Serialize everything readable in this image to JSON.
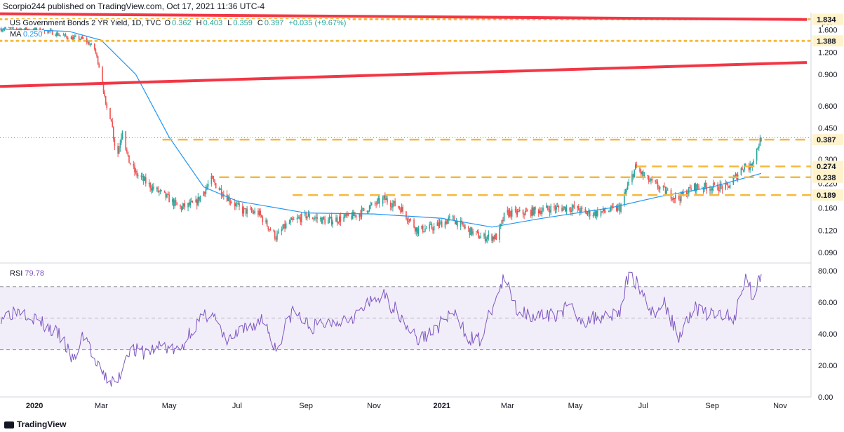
{
  "header": {
    "text": "Scorpio244 published on TradingView.com, Oct 17, 2021 11:36 UTC-4"
  },
  "legend": {
    "symbol": "US Government Bonds 2 YR Yield, 1D, TVC",
    "o_label": "O",
    "o": "0.362",
    "h_label": "H",
    "h": "0.403",
    "l_label": "L",
    "l": "0.359",
    "c_label": "C",
    "c": "0.397",
    "change": "+0.035 (+9.67%)"
  },
  "ma_legend": {
    "label": "MA",
    "value": "0.250"
  },
  "rsi_legend": {
    "label": "RSI",
    "value": "79.78"
  },
  "footer": {
    "brand": "TradingView"
  },
  "colors": {
    "up": "#26a69a",
    "down": "#ef5350",
    "ma": "#2196f3",
    "rsi": "#7e57c2",
    "trend": "#f23645",
    "level": "#f6b93b",
    "rsi_band": "#ede7f6"
  },
  "chart_data": [
    {
      "type": "line",
      "subtype": "candlestick",
      "title": "US Government Bonds 2 YR Yield, 1D, TVC",
      "unit_label": "pct",
      "scale": "log",
      "ylim": [
        0.08,
        2.0
      ],
      "y_ticks": [
        "1.600",
        "1.200",
        "0.900",
        "0.600",
        "0.450",
        "0.300",
        "0.220",
        "0.160",
        "0.120",
        "0.090"
      ],
      "x_tick_labels": [
        "2020",
        "Mar",
        "May",
        "Jul",
        "Sep",
        "Nov",
        "2021",
        "Mar",
        "May",
        "Jul",
        "Sep",
        "Nov"
      ],
      "x_ticks": [
        "2020-01-01",
        "2020-03-01",
        "2020-05-01",
        "2020-07-01",
        "2020-09-01",
        "2020-11-01",
        "2021-01-01",
        "2021-03-01",
        "2021-05-01",
        "2021-07-01",
        "2021-09-01",
        "2021-11-01"
      ],
      "xlim": [
        "2019-12-01",
        "2021-11-25"
      ],
      "price_series": [
        [
          "2019-12-01",
          1.62
        ],
        [
          "2019-12-15",
          1.63
        ],
        [
          "2020-01-01",
          1.6
        ],
        [
          "2020-01-15",
          1.56
        ],
        [
          "2020-02-01",
          1.45
        ],
        [
          "2020-02-15",
          1.42
        ],
        [
          "2020-02-24",
          1.25
        ],
        [
          "2020-03-01",
          0.9
        ],
        [
          "2020-03-05",
          0.6
        ],
        [
          "2020-03-10",
          0.5
        ],
        [
          "2020-03-15",
          0.3
        ],
        [
          "2020-03-20",
          0.45
        ],
        [
          "2020-03-25",
          0.3
        ],
        [
          "2020-04-01",
          0.25
        ],
        [
          "2020-04-15",
          0.21
        ],
        [
          "2020-05-01",
          0.18
        ],
        [
          "2020-05-10",
          0.16
        ],
        [
          "2020-05-25",
          0.17
        ],
        [
          "2020-06-08",
          0.23
        ],
        [
          "2020-06-20",
          0.19
        ],
        [
          "2020-07-05",
          0.155
        ],
        [
          "2020-07-20",
          0.15
        ],
        [
          "2020-08-05",
          0.11
        ],
        [
          "2020-08-15",
          0.13
        ],
        [
          "2020-09-01",
          0.145
        ],
        [
          "2020-09-20",
          0.135
        ],
        [
          "2020-10-15",
          0.145
        ],
        [
          "2020-11-10",
          0.18
        ],
        [
          "2020-11-25",
          0.16
        ],
        [
          "2020-12-10",
          0.12
        ],
        [
          "2020-12-25",
          0.125
        ],
        [
          "2021-01-10",
          0.14
        ],
        [
          "2021-01-25",
          0.12
        ],
        [
          "2021-02-05",
          0.11
        ],
        [
          "2021-02-20",
          0.11
        ],
        [
          "2021-02-27",
          0.15
        ],
        [
          "2021-03-15",
          0.15
        ],
        [
          "2021-04-10",
          0.16
        ],
        [
          "2021-05-01",
          0.16
        ],
        [
          "2021-05-10",
          0.15
        ],
        [
          "2021-05-20",
          0.15
        ],
        [
          "2021-06-10",
          0.16
        ],
        [
          "2021-06-17",
          0.21
        ],
        [
          "2021-06-24",
          0.27
        ],
        [
          "2021-07-05",
          0.23
        ],
        [
          "2021-07-20",
          0.2
        ],
        [
          "2021-08-01",
          0.18
        ],
        [
          "2021-08-15",
          0.21
        ],
        [
          "2021-09-01",
          0.21
        ],
        [
          "2021-09-15",
          0.21
        ],
        [
          "2021-09-22",
          0.24
        ],
        [
          "2021-09-30",
          0.28
        ],
        [
          "2021-10-05",
          0.27
        ],
        [
          "2021-10-10",
          0.33
        ],
        [
          "2021-10-15",
          0.397
        ]
      ],
      "ma_series": [
        [
          "2019-12-01",
          1.62
        ],
        [
          "2020-02-01",
          1.57
        ],
        [
          "2020-03-01",
          1.4
        ],
        [
          "2020-04-01",
          0.9
        ],
        [
          "2020-05-01",
          0.4
        ],
        [
          "2020-06-01",
          0.21
        ],
        [
          "2020-07-01",
          0.175
        ],
        [
          "2020-09-01",
          0.15
        ],
        [
          "2020-11-01",
          0.148
        ],
        [
          "2021-01-01",
          0.14
        ],
        [
          "2021-02-15",
          0.125
        ],
        [
          "2021-04-01",
          0.14
        ],
        [
          "2021-06-01",
          0.16
        ],
        [
          "2021-07-15",
          0.185
        ],
        [
          "2021-09-01",
          0.21
        ],
        [
          "2021-10-15",
          0.25
        ]
      ],
      "trendlines": [
        {
          "from": [
            "2019-12-01",
            1.97
          ],
          "to": [
            "2021-11-25",
            1.83
          ]
        },
        {
          "from": [
            "2019-12-01",
            0.77
          ],
          "to": [
            "2021-11-25",
            1.05
          ]
        }
      ],
      "level_lines": [
        {
          "value": 1.834,
          "label": "1.834",
          "from": "2019-12-01",
          "style": "dotted"
        },
        {
          "value": 1.388,
          "label": "1.388",
          "from": "2019-12-01",
          "style": "dotted"
        },
        {
          "value": 0.387,
          "label": "0.387",
          "from": "2020-04-25",
          "style": "dashed"
        },
        {
          "value": 0.274,
          "label": "0.274",
          "from": "2021-06-25",
          "style": "dashed"
        },
        {
          "value": 0.238,
          "label": "0.238",
          "from": "2020-06-15",
          "style": "dashed"
        },
        {
          "value": 0.189,
          "label": "0.189",
          "from": "2020-08-20",
          "style": "dashed"
        }
      ],
      "last_price": 0.397
    },
    {
      "type": "line",
      "title": "RSI",
      "ylim": [
        0,
        85
      ],
      "y_ticks": [
        "80.00",
        "60.00",
        "40.00",
        "20.00",
        "0.00"
      ],
      "band": [
        30,
        70
      ],
      "mid": 50,
      "last_value": 79.78,
      "series": [
        [
          "2019-12-01",
          51
        ],
        [
          "2019-12-20",
          56
        ],
        [
          "2020-01-05",
          48
        ],
        [
          "2020-01-25",
          38
        ],
        [
          "2020-02-05",
          22
        ],
        [
          "2020-02-15",
          42
        ],
        [
          "2020-02-25",
          20
        ],
        [
          "2020-03-05",
          12
        ],
        [
          "2020-03-15",
          8
        ],
        [
          "2020-03-25",
          30
        ],
        [
          "2020-04-10",
          28
        ],
        [
          "2020-04-25",
          33
        ],
        [
          "2020-05-10",
          28
        ],
        [
          "2020-05-20",
          42
        ],
        [
          "2020-06-08",
          55
        ],
        [
          "2020-06-20",
          35
        ],
        [
          "2020-07-10",
          43
        ],
        [
          "2020-07-25",
          50
        ],
        [
          "2020-08-05",
          30
        ],
        [
          "2020-08-20",
          55
        ],
        [
          "2020-09-05",
          44
        ],
        [
          "2020-09-25",
          48
        ],
        [
          "2020-10-15",
          52
        ],
        [
          "2020-11-08",
          65
        ],
        [
          "2020-11-25",
          52
        ],
        [
          "2020-12-10",
          36
        ],
        [
          "2020-12-25",
          42
        ],
        [
          "2021-01-10",
          54
        ],
        [
          "2021-01-25",
          38
        ],
        [
          "2021-02-05",
          36
        ],
        [
          "2021-02-15",
          56
        ],
        [
          "2021-02-26",
          75
        ],
        [
          "2021-03-10",
          55
        ],
        [
          "2021-04-05",
          50
        ],
        [
          "2021-04-25",
          57
        ],
        [
          "2021-05-10",
          48
        ],
        [
          "2021-05-25",
          52
        ],
        [
          "2021-06-10",
          54
        ],
        [
          "2021-06-18",
          78
        ],
        [
          "2021-06-28",
          70
        ],
        [
          "2021-07-10",
          52
        ],
        [
          "2021-07-20",
          60
        ],
        [
          "2021-08-01",
          38
        ],
        [
          "2021-08-15",
          57
        ],
        [
          "2021-08-30",
          52
        ],
        [
          "2021-09-10",
          53
        ],
        [
          "2021-09-20",
          48
        ],
        [
          "2021-10-01",
          78
        ],
        [
          "2021-10-08",
          62
        ],
        [
          "2021-10-15",
          79.78
        ]
      ]
    }
  ]
}
